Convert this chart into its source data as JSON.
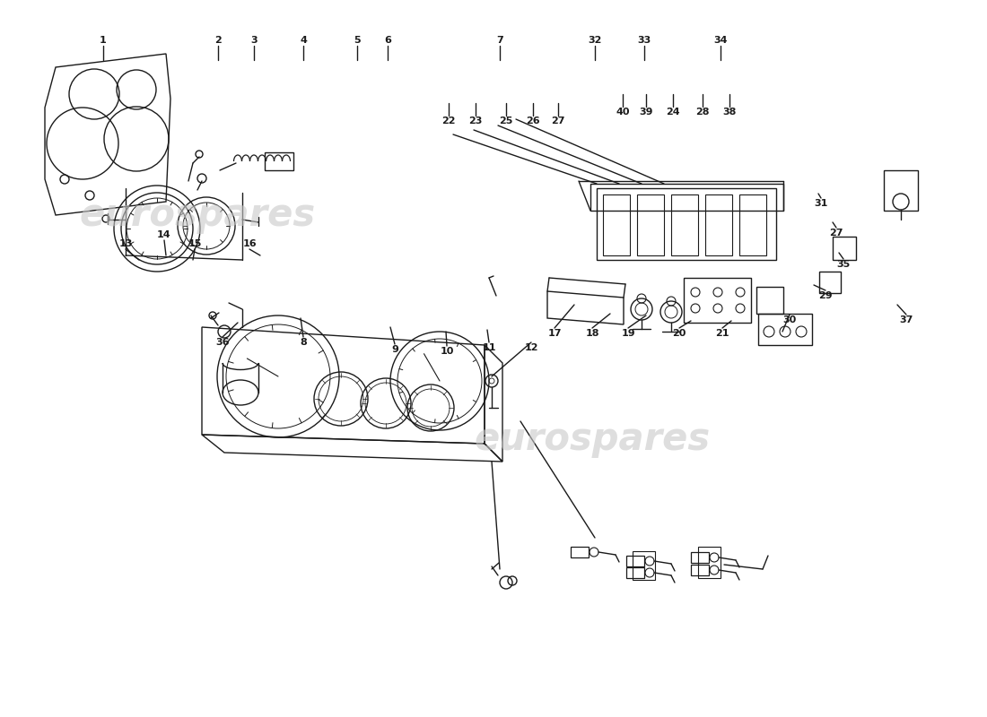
{
  "background_color": "#ffffff",
  "line_color": "#1a1a1a",
  "text_color": "#1a1a1a",
  "fig_width": 11.0,
  "fig_height": 8.0,
  "dpi": 100,
  "top_labels": [
    [
      115,
      755,
      "1"
    ],
    [
      243,
      755,
      "2"
    ],
    [
      283,
      755,
      "3"
    ],
    [
      338,
      755,
      "4"
    ],
    [
      398,
      755,
      "5"
    ],
    [
      432,
      755,
      "6"
    ],
    [
      557,
      755,
      "7"
    ],
    [
      663,
      755,
      "32"
    ],
    [
      718,
      755,
      "33"
    ],
    [
      803,
      755,
      "34"
    ]
  ],
  "mid_labels_left": [
    [
      248,
      425,
      "36"
    ],
    [
      338,
      425,
      "8"
    ],
    [
      430,
      410,
      "9"
    ],
    [
      502,
      410,
      "10"
    ],
    [
      545,
      415,
      "11"
    ],
    [
      594,
      415,
      "12"
    ],
    [
      140,
      530,
      "13"
    ],
    [
      185,
      540,
      "14"
    ],
    [
      218,
      530,
      "15"
    ],
    [
      280,
      530,
      "16"
    ]
  ],
  "right_labels": [
    [
      618,
      435,
      "17"
    ],
    [
      660,
      435,
      "18"
    ],
    [
      700,
      435,
      "19"
    ],
    [
      757,
      435,
      "20"
    ],
    [
      805,
      435,
      "21"
    ],
    [
      880,
      450,
      "30"
    ],
    [
      920,
      477,
      "29"
    ],
    [
      940,
      510,
      "35"
    ],
    [
      932,
      545,
      "27"
    ],
    [
      915,
      578,
      "31"
    ],
    [
      1010,
      450,
      "37"
    ]
  ],
  "bot_labels": [
    [
      500,
      665,
      "22"
    ],
    [
      530,
      665,
      "23"
    ],
    [
      564,
      665,
      "25"
    ],
    [
      594,
      665,
      "26"
    ],
    [
      622,
      665,
      "27"
    ],
    [
      694,
      675,
      "40"
    ],
    [
      720,
      675,
      "39"
    ],
    [
      750,
      675,
      "24"
    ],
    [
      783,
      675,
      "28"
    ],
    [
      813,
      675,
      "38"
    ]
  ]
}
